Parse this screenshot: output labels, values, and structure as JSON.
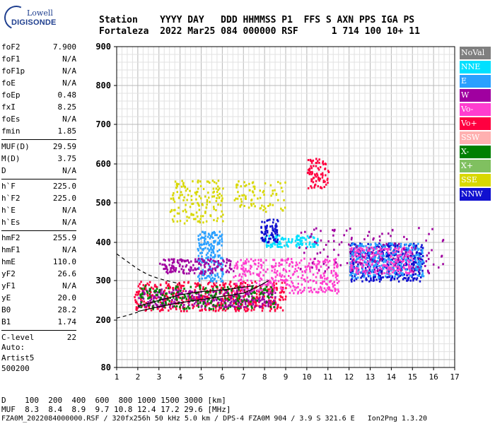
{
  "logo": {
    "line1": "Lowell",
    "line2": "DIGISONDE"
  },
  "header": {
    "labels": "Station    YYYY DAY   DDD HHMMSS P1  FFS S AXN PPS IGA PS",
    "values": "Fortaleza  2022 Mar25 084 000000 RSF      1 714 100 10+ 11"
  },
  "params": {
    "group1": [
      {
        "name": "foF2",
        "value": "7.900"
      },
      {
        "name": "foF1",
        "value": "N/A"
      },
      {
        "name": "foF1p",
        "value": "N/A"
      },
      {
        "name": "foE",
        "value": "N/A"
      },
      {
        "name": "foEp",
        "value": "0.48"
      },
      {
        "name": "fxI",
        "value": "8.25"
      },
      {
        "name": "foEs",
        "value": "N/A"
      },
      {
        "name": "fmin",
        "value": "1.85"
      }
    ],
    "group2": [
      {
        "name": "MUF(D)",
        "value": "29.59"
      },
      {
        "name": "M(D)",
        "value": "3.75"
      },
      {
        "name": "D",
        "value": "N/A"
      }
    ],
    "group3": [
      {
        "name": "h`F",
        "value": "225.0"
      },
      {
        "name": "h`F2",
        "value": "225.0"
      },
      {
        "name": "h`E",
        "value": "N/A"
      },
      {
        "name": "h`Es",
        "value": "N/A"
      }
    ],
    "group4": [
      {
        "name": "hmF2",
        "value": "255.9"
      },
      {
        "name": "hmF1",
        "value": "N/A"
      },
      {
        "name": "hmE",
        "value": "110.0"
      },
      {
        "name": "yF2",
        "value": "26.6"
      },
      {
        "name": "yF1",
        "value": "N/A"
      },
      {
        "name": "yE",
        "value": "20.0"
      },
      {
        "name": "B0",
        "value": "28.2"
      },
      {
        "name": "B1",
        "value": "1.74"
      }
    ],
    "group5": [
      {
        "name": "C-level",
        "value": "22"
      }
    ]
  },
  "auto": {
    "line1": "Auto:",
    "line2": "Artist5",
    "line3": "500200"
  },
  "legend": [
    {
      "label": "NoVal",
      "color": "#7f7f7f"
    },
    {
      "label": "NNE",
      "color": "#00e0ff"
    },
    {
      "label": "E",
      "color": "#2aa0ff"
    },
    {
      "label": "W",
      "color": "#a000a0"
    },
    {
      "label": "Vo-",
      "color": "#ff3dcf"
    },
    {
      "label": "Vo+",
      "color": "#ff0040"
    },
    {
      "label": "SSW",
      "color": "#ffb0b0"
    },
    {
      "label": "X-",
      "color": "#008000"
    },
    {
      "label": "X+",
      "color": "#80c060"
    },
    {
      "label": "SSE",
      "color": "#d8d800"
    },
    {
      "label": "NNW",
      "color": "#1010d0"
    }
  ],
  "footer": {
    "line1": "D    100  200  400  600  800 1000 1500 3000 [km]",
    "line2": "MUF  8.3  8.4  8.9  9.7 10.8 12.4 17.2 29.6 [MHz]",
    "line3": "FZA0M_2022084000000.RSF / 320fx256h 50 kHz 5.0 km / DPS-4 FZA0M 904 / 3.9 S 321.6 E   Ion2Png 1.3.20"
  },
  "chart_data": {
    "type": "scatter",
    "title": "",
    "xlabel": "",
    "ylabel": "",
    "xlim": [
      1,
      17
    ],
    "ylim": [
      80,
      900
    ],
    "x_ticks": [
      1,
      2,
      3,
      4,
      5,
      6,
      7,
      8,
      9,
      10,
      11,
      12,
      13,
      14,
      15,
      16,
      17
    ],
    "y_ticks": [
      80,
      200,
      300,
      400,
      500,
      600,
      700,
      800,
      900
    ],
    "grid": true,
    "legend_position": "right",
    "clusters": [
      {
        "name": "F-trace",
        "x0": 1.8,
        "x1": 9.0,
        "y0": 225,
        "y1": 300,
        "color": "#ff0040",
        "n": 500
      },
      {
        "name": "F-trace2",
        "x0": 2.0,
        "x1": 8.5,
        "y0": 235,
        "y1": 280,
        "color": "#a000a0",
        "n": 300
      },
      {
        "name": "F-trace3",
        "x0": 2.0,
        "x1": 8.5,
        "y0": 230,
        "y1": 290,
        "color": "#008000",
        "n": 200
      },
      {
        "name": "F-spread",
        "x0": 6.5,
        "x1": 11.5,
        "y0": 270,
        "y1": 360,
        "color": "#ff3dcf",
        "n": 350
      },
      {
        "name": "E-echo",
        "x0": 4.8,
        "x1": 6.0,
        "y0": 300,
        "y1": 430,
        "color": "#2aa0ff",
        "n": 200
      },
      {
        "name": "W-echo",
        "x0": 3.0,
        "x1": 6.5,
        "y0": 320,
        "y1": 360,
        "color": "#a000a0",
        "n": 150
      },
      {
        "name": "SSE-echo",
        "x0": 3.5,
        "x1": 6.0,
        "y0": 450,
        "y1": 560,
        "color": "#d8d800",
        "n": 150
      },
      {
        "name": "SSE-echo2",
        "x0": 6.5,
        "x1": 9.0,
        "y0": 480,
        "y1": 560,
        "color": "#d8d800",
        "n": 80
      },
      {
        "name": "NNE-echo",
        "x0": 8.0,
        "x1": 10.5,
        "y0": 390,
        "y1": 420,
        "color": "#00e0ff",
        "n": 120
      },
      {
        "name": "NNW-echo",
        "x0": 7.8,
        "x1": 8.6,
        "y0": 400,
        "y1": 460,
        "color": "#1010d0",
        "n": 80
      },
      {
        "name": "High-echo",
        "x0": 10.0,
        "x1": 11.0,
        "y0": 540,
        "y1": 620,
        "color": "#ff0040",
        "n": 80
      },
      {
        "name": "F2-spread",
        "x0": 12.0,
        "x1": 15.5,
        "y0": 300,
        "y1": 400,
        "color": "#1010d0",
        "n": 400
      },
      {
        "name": "F2-spread2",
        "x0": 12.0,
        "x1": 15.5,
        "y0": 310,
        "y1": 400,
        "color": "#2aa0ff",
        "n": 300
      },
      {
        "name": "F2-spread3",
        "x0": 12.0,
        "x1": 15.0,
        "y0": 320,
        "y1": 390,
        "color": "#ff3dcf",
        "n": 200
      },
      {
        "name": "Scattered",
        "x0": 9.5,
        "x1": 16.5,
        "y0": 320,
        "y1": 440,
        "color": "#a000a0",
        "n": 120
      }
    ],
    "curves": [
      {
        "name": "virtual-height-dashed",
        "style": "dashed",
        "x": [
          1.0,
          1.5,
          2.0,
          2.5,
          3.0,
          3.5,
          4.0
        ],
        "y": [
          370,
          350,
          330,
          315,
          305,
          298,
          292
        ]
      },
      {
        "name": "virtual-height-lower",
        "style": "dashed",
        "x": [
          1.0,
          1.5,
          2.0
        ],
        "y": [
          205,
          212,
          220
        ]
      },
      {
        "name": "trace-fit",
        "style": "solid",
        "x": [
          2.0,
          3.0,
          4.0,
          5.0,
          6.0,
          7.0,
          7.7,
          8.2
        ],
        "y": [
          222,
          234,
          244,
          252,
          260,
          268,
          285,
          300
        ]
      },
      {
        "name": "trace-fit-2",
        "style": "solid",
        "x": [
          2.0,
          3.0,
          4.0,
          5.0,
          6.0,
          7.0,
          7.5
        ],
        "y": [
          235,
          250,
          264,
          272,
          276,
          283,
          287
        ]
      }
    ]
  }
}
